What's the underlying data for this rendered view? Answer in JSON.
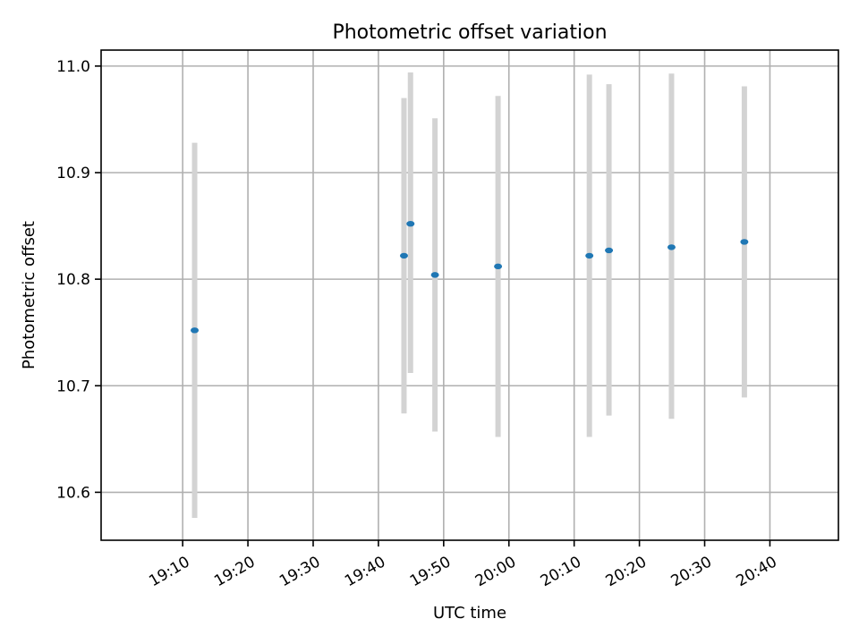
{
  "chart_data": {
    "type": "scatter",
    "title": "Photometric offset variation",
    "xlabel": "UTC time",
    "ylabel": "Photometric offset",
    "xlim": [
      "18:57:30",
      "20:50:30"
    ],
    "ylim": [
      10.555,
      11.015
    ],
    "grid": true,
    "x_ticks": [
      "19:10",
      "19:20",
      "19:30",
      "19:40",
      "19:50",
      "20:00",
      "20:10",
      "20:20",
      "20:30",
      "20:40"
    ],
    "y_ticks": [
      10.6,
      10.7,
      10.8,
      10.9,
      11.0
    ],
    "y_tick_labels": [
      "10.6",
      "10.7",
      "10.8",
      "10.9",
      "11.0"
    ],
    "point_color": "#1f77b4",
    "errorbar_color": "#d3d3d3",
    "points": [
      {
        "x": "19:11:50",
        "y": 10.752,
        "ymin": 10.576,
        "ymax": 10.928
      },
      {
        "x": "19:43:55",
        "y": 10.822,
        "ymin": 10.674,
        "ymax": 10.97
      },
      {
        "x": "19:44:55",
        "y": 10.852,
        "ymin": 10.712,
        "ymax": 10.994
      },
      {
        "x": "19:48:40",
        "y": 10.804,
        "ymin": 10.657,
        "ymax": 10.951
      },
      {
        "x": "19:58:20",
        "y": 10.812,
        "ymin": 10.652,
        "ymax": 10.972
      },
      {
        "x": "20:12:20",
        "y": 10.822,
        "ymin": 10.652,
        "ymax": 10.992
      },
      {
        "x": "20:15:20",
        "y": 10.827,
        "ymin": 10.672,
        "ymax": 10.983
      },
      {
        "x": "20:24:55",
        "y": 10.83,
        "ymin": 10.669,
        "ymax": 10.993
      },
      {
        "x": "20:36:05",
        "y": 10.835,
        "ymin": 10.689,
        "ymax": 10.981
      }
    ]
  }
}
